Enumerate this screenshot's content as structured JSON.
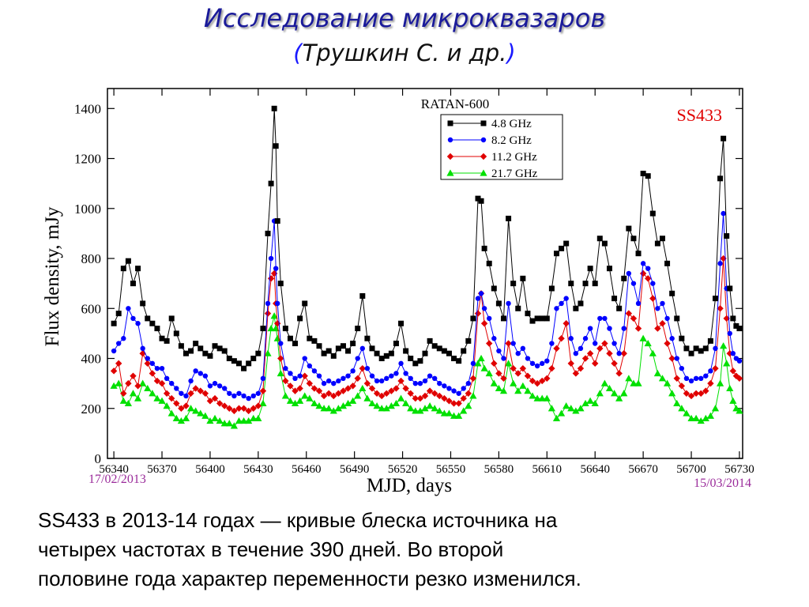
{
  "slide": {
    "title": "Исследование микроквазаров",
    "subtitle_open": "(",
    "subtitle_text": "Трушкин С. и др.",
    "subtitle_close": ")",
    "caption_lines": [
      "SS433 в 2013-14 годах — кривые блеска источника на",
      "четырех частотах в течение 390  дней. Во второй",
      "половине года характер переменности резко изменился."
    ]
  },
  "chart_data": {
    "type": "line",
    "title": "RATAN-600",
    "source_label": "SS433",
    "xlabel": "MJD, days",
    "ylabel": "Flux density, mJy",
    "xlim": [
      56336,
      56732
    ],
    "ylim": [
      0,
      1480
    ],
    "xticks": [
      56340,
      56370,
      56400,
      56430,
      56460,
      56490,
      56520,
      56550,
      56580,
      56610,
      56640,
      56670,
      56700,
      56730
    ],
    "yticks": [
      0,
      200,
      400,
      600,
      800,
      1000,
      1200,
      1400
    ],
    "date_start": "17/02/2013",
    "date_end": "15/03/2014",
    "grid": false,
    "legend_position": "top-center",
    "x": [
      56340,
      56343,
      56346,
      56349,
      56352,
      56355,
      56358,
      56361,
      56364,
      56367,
      56370,
      56373,
      56376,
      56379,
      56382,
      56385,
      56388,
      56391,
      56394,
      56397,
      56400,
      56403,
      56406,
      56409,
      56412,
      56415,
      56418,
      56421,
      56424,
      56427,
      56430,
      56433,
      56436,
      56438,
      56440,
      56441,
      56442,
      56444,
      56447,
      56450,
      56453,
      56456,
      56459,
      56462,
      56465,
      56468,
      56471,
      56474,
      56477,
      56480,
      56483,
      56486,
      56489,
      56492,
      56495,
      56498,
      56501,
      56504,
      56507,
      56510,
      56513,
      56516,
      56519,
      56522,
      56525,
      56528,
      56531,
      56534,
      56537,
      56540,
      56543,
      56546,
      56549,
      56552,
      56555,
      56558,
      56561,
      56564,
      56567,
      56569,
      56571,
      56574,
      56577,
      56580,
      56583,
      56586,
      56589,
      56592,
      56595,
      56598,
      56601,
      56604,
      56607,
      56610,
      56613,
      56616,
      56619,
      56622,
      56625,
      56628,
      56631,
      56634,
      56637,
      56640,
      56643,
      56646,
      56649,
      56652,
      56655,
      56658,
      56661,
      56664,
      56667,
      56670,
      56673,
      56676,
      56679,
      56682,
      56685,
      56688,
      56691,
      56694,
      56697,
      56700,
      56703,
      56706,
      56709,
      56712,
      56715,
      56718,
      56720,
      56722,
      56724,
      56726,
      56728,
      56730
    ],
    "series": [
      {
        "name": "4.8 GHz",
        "color": "#000000",
        "marker": "square",
        "values": [
          540,
          580,
          760,
          790,
          700,
          760,
          620,
          560,
          540,
          520,
          480,
          470,
          560,
          500,
          450,
          420,
          430,
          460,
          440,
          420,
          410,
          450,
          440,
          430,
          400,
          390,
          380,
          360,
          380,
          400,
          420,
          520,
          900,
          1100,
          1400,
          1250,
          950,
          700,
          520,
          480,
          460,
          560,
          620,
          480,
          470,
          450,
          420,
          430,
          410,
          440,
          450,
          430,
          460,
          520,
          650,
          480,
          440,
          420,
          400,
          410,
          420,
          460,
          540,
          430,
          400,
          380,
          390,
          420,
          470,
          450,
          440,
          430,
          420,
          400,
          390,
          430,
          470,
          560,
          1040,
          1030,
          840,
          780,
          680,
          620,
          560,
          960,
          700,
          600,
          720,
          580,
          550,
          560,
          560,
          560,
          680,
          820,
          840,
          860,
          700,
          600,
          620,
          700,
          760,
          700,
          880,
          860,
          760,
          640,
          600,
          720,
          920,
          880,
          820,
          1140,
          1130,
          980,
          860,
          880,
          780,
          660,
          560,
          480,
          440,
          420,
          440,
          430,
          440,
          470,
          640,
          1120,
          1280,
          890,
          680,
          560,
          530,
          520
        ]
      },
      {
        "name": "8.2 GHz",
        "color": "#0000ff",
        "marker": "circle",
        "values": [
          430,
          460,
          480,
          600,
          560,
          540,
          440,
          400,
          380,
          360,
          360,
          320,
          300,
          280,
          260,
          250,
          310,
          350,
          340,
          330,
          290,
          300,
          290,
          280,
          260,
          250,
          260,
          250,
          240,
          250,
          260,
          320,
          620,
          800,
          950,
          760,
          620,
          460,
          360,
          340,
          320,
          330,
          400,
          370,
          350,
          330,
          300,
          310,
          300,
          310,
          320,
          330,
          350,
          400,
          440,
          360,
          330,
          310,
          310,
          320,
          330,
          340,
          380,
          340,
          320,
          300,
          300,
          310,
          330,
          320,
          300,
          290,
          280,
          270,
          260,
          280,
          300,
          380,
          640,
          660,
          600,
          560,
          480,
          430,
          400,
          620,
          460,
          420,
          440,
          400,
          380,
          370,
          380,
          390,
          460,
          600,
          620,
          640,
          480,
          420,
          440,
          480,
          520,
          460,
          560,
          560,
          520,
          460,
          420,
          520,
          740,
          700,
          620,
          780,
          760,
          700,
          600,
          620,
          560,
          480,
          400,
          360,
          320,
          310,
          320,
          320,
          330,
          350,
          440,
          780,
          980,
          680,
          500,
          420,
          400,
          390
        ]
      },
      {
        "name": "11.2 GHz",
        "color": "#e00000",
        "marker": "diamond",
        "values": [
          350,
          380,
          260,
          300,
          330,
          290,
          420,
          380,
          340,
          310,
          300,
          260,
          240,
          220,
          200,
          210,
          260,
          280,
          270,
          260,
          230,
          240,
          220,
          210,
          200,
          190,
          200,
          200,
          190,
          200,
          210,
          270,
          580,
          720,
          740,
          620,
          540,
          400,
          310,
          290,
          270,
          280,
          330,
          300,
          280,
          270,
          250,
          260,
          250,
          260,
          270,
          280,
          290,
          320,
          360,
          300,
          280,
          260,
          250,
          260,
          270,
          280,
          310,
          280,
          260,
          240,
          240,
          250,
          270,
          260,
          250,
          240,
          230,
          220,
          220,
          240,
          260,
          320,
          580,
          660,
          540,
          460,
          380,
          340,
          320,
          460,
          360,
          340,
          360,
          330,
          310,
          300,
          310,
          320,
          360,
          440,
          480,
          540,
          380,
          340,
          360,
          400,
          420,
          380,
          440,
          460,
          420,
          380,
          340,
          420,
          580,
          560,
          520,
          740,
          720,
          640,
          520,
          540,
          460,
          400,
          320,
          290,
          260,
          250,
          260,
          260,
          270,
          300,
          360,
          600,
          800,
          560,
          420,
          350,
          330,
          320
        ]
      },
      {
        "name": "21.7 GHz",
        "color": "#00e000",
        "marker": "triangle",
        "values": [
          290,
          300,
          230,
          220,
          260,
          240,
          300,
          280,
          260,
          240,
          230,
          210,
          180,
          160,
          150,
          160,
          200,
          190,
          180,
          170,
          150,
          160,
          150,
          140,
          140,
          130,
          150,
          150,
          150,
          160,
          160,
          220,
          420,
          520,
          570,
          520,
          480,
          340,
          250,
          230,
          220,
          230,
          250,
          240,
          220,
          210,
          200,
          200,
          190,
          200,
          210,
          220,
          230,
          250,
          280,
          240,
          220,
          210,
          200,
          200,
          210,
          220,
          240,
          220,
          200,
          190,
          190,
          200,
          210,
          200,
          190,
          180,
          180,
          170,
          170,
          190,
          210,
          250,
          380,
          400,
          360,
          340,
          300,
          280,
          270,
          380,
          300,
          270,
          290,
          270,
          250,
          240,
          240,
          240,
          200,
          160,
          180,
          210,
          200,
          190,
          200,
          220,
          230,
          220,
          260,
          300,
          280,
          260,
          240,
          260,
          320,
          300,
          300,
          480,
          460,
          420,
          340,
          320,
          300,
          260,
          220,
          200,
          180,
          160,
          160,
          150,
          160,
          170,
          200,
          300,
          450,
          380,
          280,
          230,
          200,
          190
        ]
      }
    ]
  }
}
